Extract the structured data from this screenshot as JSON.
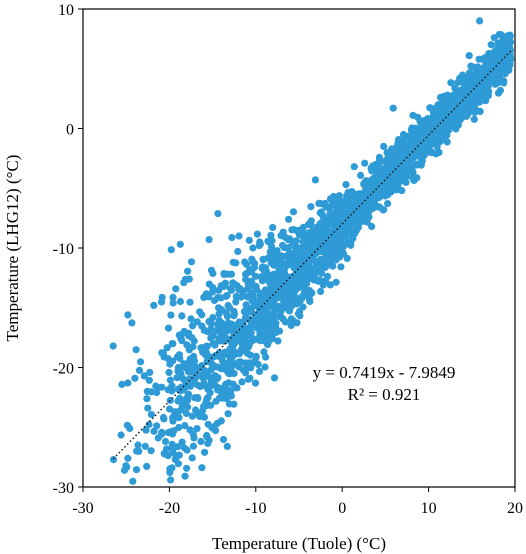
{
  "chart_data": {
    "type": "scatter",
    "xlabel": "Temperature (Tuole) (°C)",
    "ylabel": "Temperature (LHG12) (°C)",
    "xlim": [
      -30,
      20
    ],
    "ylim": [
      -30,
      10
    ],
    "x_ticks": [
      "-30",
      "-20",
      "-10",
      "0",
      "10",
      "20"
    ],
    "y_ticks": [
      "-30",
      "-20",
      "-10",
      "0",
      "10"
    ],
    "grid": false,
    "legend": "none",
    "point_color": "#2e9bd6",
    "trendline": {
      "slope": 0.7419,
      "intercept": -7.9849,
      "x_range": [
        -26.5,
        19.5
      ],
      "style": "dotted",
      "equation": "y = 0.7419x - 7.9849",
      "r2": "R² = 0.921"
    },
    "series": [
      {
        "count": 2500,
        "x_range": [
          -26.5,
          19.5
        ],
        "points": [
          [
            -26.5,
            -18.2
          ],
          [
            -25.2,
            -28.6
          ],
          [
            -24.8,
            -15.6
          ],
          [
            -24.6,
            -25.1
          ],
          [
            -23.8,
            -27.0
          ],
          [
            -22.9,
            -20.7
          ],
          [
            -22.5,
            -23.4
          ],
          [
            -21.8,
            -14.8
          ],
          [
            -21.3,
            -25.9
          ],
          [
            -20.6,
            -27.2
          ],
          [
            -20.1,
            -16.7
          ],
          [
            -19.7,
            -28.4
          ],
          [
            -19.0,
            -22.8
          ],
          [
            -18.2,
            -29.1
          ],
          [
            -17.7,
            -12.6
          ],
          [
            -17.4,
            -17.5
          ],
          [
            -16.5,
            -24.1
          ],
          [
            -15.4,
            -9.3
          ],
          [
            -15.0,
            -20.0
          ],
          [
            -14.3,
            -15.0
          ],
          [
            -13.3,
            -26.6
          ],
          [
            -12.6,
            -11.2
          ],
          [
            -11.5,
            -17.8
          ],
          [
            -10.3,
            -14.0
          ],
          [
            -9.6,
            -9.8
          ],
          [
            -8.3,
            -16.5
          ],
          [
            -7.1,
            -11.1
          ],
          [
            -6.2,
            -7.6
          ],
          [
            -5.0,
            -12.9
          ],
          [
            -4.0,
            -10.2
          ],
          [
            -3.1,
            -4.3
          ],
          [
            -2.2,
            -13.1
          ],
          [
            -1.0,
            -6.4
          ],
          [
            0.3,
            -8.6
          ],
          [
            1.4,
            -3.2
          ],
          [
            2.6,
            -2.9
          ],
          [
            3.4,
            -8.2
          ],
          [
            4.8,
            -1.5
          ],
          [
            5.9,
            1.7
          ],
          [
            6.9,
            -5.2
          ],
          [
            8.2,
            1.1
          ],
          [
            9.1,
            0.4
          ],
          [
            10.2,
            0.8
          ],
          [
            11.2,
            -2.0
          ],
          [
            12.3,
            2.3
          ],
          [
            13.6,
            4.2
          ],
          [
            14.7,
            6.1
          ],
          [
            15.9,
            9.0
          ],
          [
            16.6,
            5.3
          ],
          [
            17.6,
            7.6
          ],
          [
            18.5,
            7.3
          ],
          [
            19.5,
            5.8
          ]
        ]
      }
    ]
  }
}
